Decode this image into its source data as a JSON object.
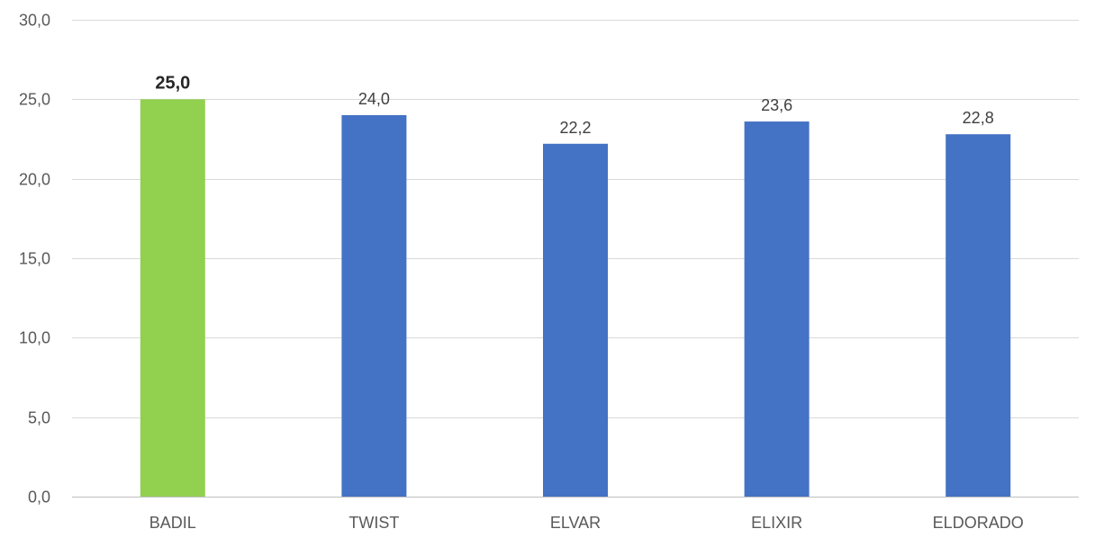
{
  "chart_data": {
    "type": "bar",
    "title": "",
    "xlabel": "",
    "ylabel": "",
    "categories": [
      "BADIL",
      "TWIST",
      "ELVAR",
      "ELIXIR",
      "ELDORADO"
    ],
    "values": [
      25.0,
      24.0,
      22.2,
      23.6,
      22.8
    ],
    "value_labels": [
      "25,0",
      "24,0",
      "22,2",
      "23,6",
      "22,8"
    ],
    "highlight_index": 0,
    "ylim": [
      0,
      30
    ],
    "yticks": [
      0,
      5,
      10,
      15,
      20,
      25,
      30
    ],
    "ytick_labels": [
      "0,0",
      "5,0",
      "10,0",
      "15,0",
      "20,0",
      "25,0",
      "30,0"
    ],
    "grid": true,
    "legend": "none",
    "colors": {
      "default_bar": "#4472c4",
      "highlight_bar": "#92d050"
    }
  }
}
